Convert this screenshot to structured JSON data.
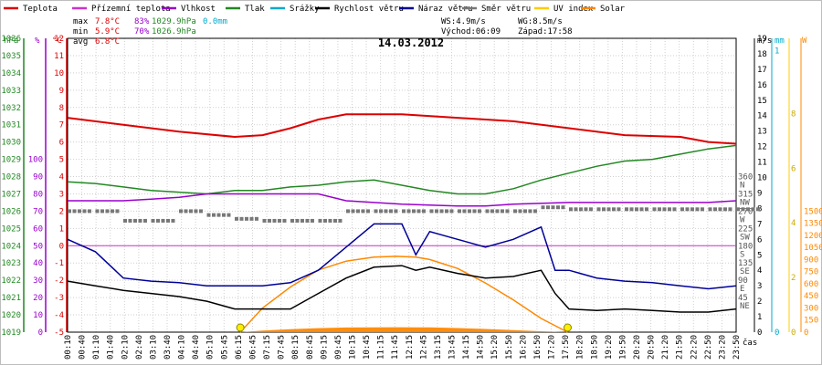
{
  "chart_data": {
    "type": "line",
    "title": "14.03.2012",
    "xlabel": "čas",
    "legend": [
      {
        "name": "Teplota",
        "color": "#dd0000"
      },
      {
        "name": "Přízemní teplota",
        "color": "#cc33cc"
      },
      {
        "name": "Vlhkost",
        "color": "#9900cc"
      },
      {
        "name": "Tlak",
        "color": "#228822"
      },
      {
        "name": "Srážky",
        "color": "#00aacc"
      },
      {
        "name": "Rychlost větru",
        "color": "#000000"
      },
      {
        "name": "Náraz větru",
        "color": "#000099"
      },
      {
        "name": "Směr větru",
        "color": "#777777"
      },
      {
        "name": "UV index",
        "color": "#ffcc00"
      },
      {
        "name": "Solar",
        "color": "#ff8800"
      }
    ],
    "stats": {
      "max_label": "max",
      "min_label": "min",
      "avg_label": "avg",
      "temp_max": "7.8°C",
      "temp_min": "5.9°C",
      "temp_avg": "6.8°C",
      "hum_max": "83%",
      "hum_min": "70%",
      "press_max": "1029.9hPa",
      "press_min": "1026.9hPa",
      "rain": "0.0mm",
      "ws": "WS:4.9m/s",
      "wg": "WG:8.5m/s",
      "sunrise": "Východ:06:09",
      "sunset": "Západ:17:58"
    },
    "axes": {
      "pressure": {
        "unit": "hPa",
        "ticks": [
          "1019",
          "1020",
          "1021",
          "1022",
          "1023",
          "1024",
          "1025",
          "1026",
          "1027",
          "1028",
          "1029",
          "1030",
          "1031",
          "1032",
          "1033",
          "1034",
          "1035",
          "1036"
        ]
      },
      "humidity": {
        "unit": "%",
        "ticks": [
          "0",
          "10",
          "20",
          "30",
          "40",
          "50",
          "60",
          "70",
          "80",
          "90",
          "100"
        ]
      },
      "temperature": {
        "unit": "°C",
        "ticks": [
          "-5",
          "-4",
          "-3",
          "-2",
          "-1",
          "0",
          "1",
          "2",
          "3",
          "4",
          "5",
          "6",
          "7",
          "8",
          "9",
          "10",
          "11",
          "12"
        ]
      },
      "direction": {
        "unit": "°",
        "ticks": [
          {
            "v": "45",
            "d": "NE"
          },
          {
            "v": "90",
            "d": "E"
          },
          {
            "v": "135",
            "d": "SE"
          },
          {
            "v": "180",
            "d": "S"
          },
          {
            "v": "225",
            "d": "SW"
          },
          {
            "v": "270",
            "d": "W"
          },
          {
            "v": "315",
            "d": "NW"
          },
          {
            "v": "360",
            "d": "N"
          }
        ]
      },
      "wind": {
        "unit": "m/s",
        "ticks": [
          "0",
          "1",
          "2",
          "3",
          "4",
          "5",
          "6",
          "7",
          "8",
          "9",
          "10",
          "11",
          "12",
          "13",
          "14",
          "15",
          "16",
          "17",
          "18",
          "19"
        ]
      },
      "rain": {
        "unit": "mm",
        "ticks": [
          "0",
          "1"
        ]
      },
      "uv": {
        "unit": "",
        "ticks": [
          "0",
          "2",
          "4",
          "6",
          "8"
        ]
      },
      "solar": {
        "unit": "W",
        "ticks": [
          "0",
          "150",
          "300",
          "450",
          "600",
          "750",
          "900",
          "1050",
          "1200",
          "1350",
          "1500"
        ]
      },
      "x_ticks": [
        "00:10",
        "00:40",
        "01:10",
        "01:40",
        "02:10",
        "02:40",
        "03:10",
        "03:40",
        "04:10",
        "04:40",
        "05:10",
        "05:45",
        "06:15",
        "06:45",
        "07:15",
        "07:45",
        "08:15",
        "08:45",
        "09:15",
        "09:45",
        "10:15",
        "10:45",
        "11:15",
        "11:45",
        "12:15",
        "12:45",
        "13:15",
        "13:45",
        "14:15",
        "14:50",
        "15:20",
        "15:50",
        "16:20",
        "16:50",
        "17:20",
        "17:50",
        "18:20",
        "18:50",
        "19:20",
        "19:50",
        "20:20",
        "20:50",
        "21:20",
        "21:50",
        "22:20",
        "22:50",
        "23:20",
        "23:50"
      ]
    },
    "series": [
      {
        "name": "Teplota",
        "unit": "°C",
        "x_hours": [
          0,
          2,
          4,
          6,
          7,
          8,
          9,
          10,
          12,
          14,
          16,
          18,
          20,
          22,
          23,
          24
        ],
        "values": [
          7.4,
          7.0,
          6.6,
          6.3,
          6.4,
          6.8,
          7.3,
          7.6,
          7.6,
          7.4,
          7.2,
          6.8,
          6.4,
          6.3,
          6.0,
          5.9
        ]
      },
      {
        "name": "Vlhkost",
        "unit": "%",
        "x_hours": [
          0,
          1,
          2,
          3,
          4,
          5,
          6,
          7,
          8,
          9,
          10,
          12,
          14,
          15,
          16,
          18,
          20,
          22,
          23,
          24
        ],
        "values": [
          76,
          76,
          76,
          77,
          78,
          80,
          80,
          80,
          80,
          80,
          76,
          74,
          73,
          73,
          74,
          75,
          75,
          75,
          75,
          76
        ]
      },
      {
        "name": "Tlak",
        "unit": "hPa",
        "x_hours": [
          0,
          1,
          2,
          3,
          4,
          5,
          6,
          7,
          8,
          9,
          10,
          11,
          12,
          13,
          14,
          15,
          16,
          17,
          18,
          19,
          20,
          21,
          22,
          23,
          24
        ],
        "values": [
          1027.7,
          1027.6,
          1027.4,
          1027.2,
          1027.1,
          1027.0,
          1027.2,
          1027.2,
          1027.4,
          1027.5,
          1027.7,
          1027.8,
          1027.5,
          1027.2,
          1027.0,
          1027.0,
          1027.3,
          1027.8,
          1028.2,
          1028.6,
          1028.9,
          1029.0,
          1029.3,
          1029.6,
          1029.8
        ]
      },
      {
        "name": "Rychlost větru",
        "unit": "m/s",
        "x_hours": [
          0,
          1,
          2,
          3,
          4,
          5,
          6,
          7,
          8,
          9,
          10,
          11,
          12,
          12.5,
          13,
          14,
          15,
          16,
          17,
          17.5,
          18,
          19,
          20,
          21,
          22,
          23,
          24
        ],
        "values": [
          3.3,
          3.0,
          2.7,
          2.5,
          2.3,
          2.0,
          1.5,
          1.5,
          1.5,
          2.5,
          3.5,
          4.2,
          4.3,
          4.0,
          4.2,
          3.8,
          3.5,
          3.6,
          4.0,
          2.5,
          1.5,
          1.4,
          1.5,
          1.4,
          1.3,
          1.3,
          1.5
        ]
      },
      {
        "name": "Náraz větru",
        "unit": "m/s",
        "x_hours": [
          0,
          1,
          2,
          3,
          4,
          5,
          6,
          7,
          8,
          9,
          10,
          11,
          12,
          12.5,
          13,
          14,
          15,
          16,
          17,
          17.5,
          18,
          19,
          20,
          21,
          22,
          23,
          24
        ],
        "values": [
          6.0,
          5.2,
          3.5,
          3.3,
          3.2,
          3.0,
          3.0,
          3.0,
          3.2,
          4.0,
          5.5,
          7.0,
          7.0,
          5.0,
          6.5,
          6.0,
          5.5,
          6.0,
          6.8,
          4.0,
          4.0,
          3.5,
          3.3,
          3.2,
          3.0,
          2.8,
          3.0
        ]
      },
      {
        "name": "Směr větru",
        "unit": "°",
        "x_hours": [
          0,
          1,
          2,
          3,
          4,
          5,
          6,
          7,
          8,
          9,
          10,
          11,
          12,
          13,
          14,
          15,
          16,
          17,
          18,
          19,
          20,
          21,
          22,
          23,
          24
        ],
        "values": [
          270,
          270,
          245,
          245,
          270,
          260,
          250,
          245,
          245,
          245,
          270,
          270,
          270,
          270,
          270,
          270,
          270,
          280,
          275,
          275,
          275,
          275,
          275,
          275,
          275
        ]
      },
      {
        "name": "Solar",
        "unit": "W",
        "x_hours": [
          6.2,
          7,
          8,
          9,
          10,
          11,
          11.8,
          12.5,
          13,
          14,
          15,
          16,
          17,
          17.95
        ],
        "values": [
          0,
          300,
          560,
          770,
          880,
          930,
          940,
          930,
          900,
          790,
          610,
          400,
          170,
          0
        ]
      }
    ],
    "wind_direction_trace_label": "Směr větru"
  }
}
